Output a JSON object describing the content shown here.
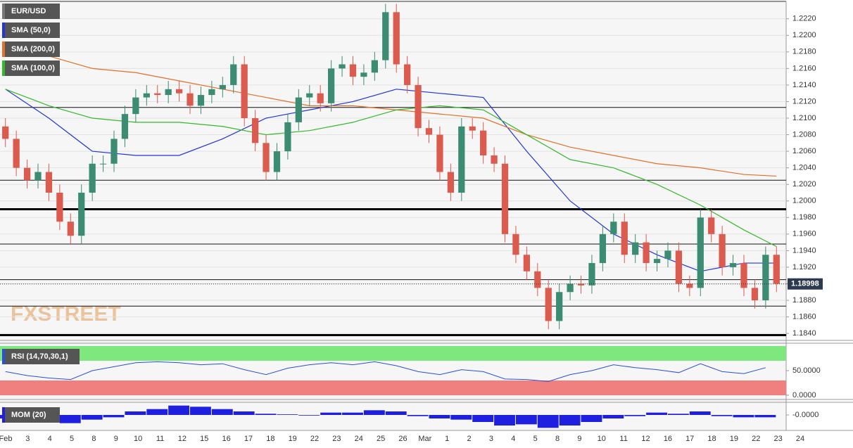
{
  "chart_data": [
    {
      "type": "candlestick",
      "symbol_label": "EUR/USD",
      "watermark": "FXSTREET",
      "open": [
        1.209,
        1.2075,
        1.204,
        1.2025,
        1.2035,
        1.201,
        1.1975,
        1.1958,
        1.201,
        1.2045,
        1.2045,
        1.2075,
        1.2105,
        1.2125,
        1.213,
        1.2128,
        1.2135,
        1.213,
        1.2115,
        1.2128,
        1.2135,
        1.214,
        1.2165,
        1.21,
        1.207,
        1.2035,
        1.206,
        1.2095,
        1.2125,
        1.213,
        1.2118,
        1.216,
        1.2165,
        1.215,
        1.2155,
        1.217,
        1.2228,
        1.2165,
        1.214,
        1.2088,
        1.208,
        1.2035,
        1.201,
        1.209,
        1.2085,
        1.2055,
        1.2045,
        1.196,
        1.1935,
        1.1915,
        1.1895,
        1.1855,
        1.189,
        1.19,
        1.1898,
        1.1925,
        1.196,
        1.1975,
        1.1935,
        1.195,
        1.1925,
        1.193,
        1.194,
        1.19,
        1.1895,
        1.198,
        1.196,
        1.192,
        1.1925,
        1.1895,
        1.188,
        1.1935
      ],
      "high": [
        1.21,
        1.2085,
        1.205,
        1.2045,
        1.2045,
        1.202,
        1.1985,
        1.202,
        1.2055,
        1.2055,
        1.2085,
        1.2115,
        1.2135,
        1.214,
        1.214,
        1.2145,
        1.2145,
        1.214,
        1.2138,
        1.2145,
        1.215,
        1.2175,
        1.2175,
        1.211,
        1.208,
        1.207,
        1.2105,
        1.2135,
        1.214,
        1.214,
        1.217,
        1.2175,
        1.2175,
        1.2165,
        1.218,
        1.2238,
        1.2238,
        1.2175,
        1.215,
        1.2098,
        1.209,
        1.2045,
        1.21,
        1.21,
        1.2095,
        1.2065,
        1.2055,
        1.197,
        1.1945,
        1.1925,
        1.1905,
        1.19,
        1.191,
        1.191,
        1.1935,
        1.197,
        1.1985,
        1.1985,
        1.196,
        1.196,
        1.194,
        1.195,
        1.195,
        1.191,
        1.199,
        1.199,
        1.197,
        1.1935,
        1.1935,
        1.1905,
        1.1945,
        1.1945
      ],
      "low": [
        1.2065,
        1.203,
        1.2015,
        1.2015,
        1.2,
        1.1965,
        1.1948,
        1.1948,
        1.2,
        1.2035,
        1.2035,
        1.2065,
        1.2095,
        1.2115,
        1.2118,
        1.2118,
        1.212,
        1.2105,
        1.2105,
        1.2118,
        1.2125,
        1.213,
        1.209,
        1.206,
        1.2025,
        1.2025,
        1.205,
        1.2085,
        1.2115,
        1.2108,
        1.2108,
        1.215,
        1.214,
        1.214,
        1.2145,
        1.216,
        1.2155,
        1.213,
        1.2078,
        1.207,
        1.2025,
        1.2,
        1.2,
        1.2075,
        1.2045,
        1.2035,
        1.195,
        1.1925,
        1.1905,
        1.1885,
        1.1845,
        1.1845,
        1.188,
        1.1888,
        1.1888,
        1.1915,
        1.195,
        1.1925,
        1.1925,
        1.1915,
        1.1915,
        1.192,
        1.189,
        1.1885,
        1.1885,
        1.195,
        1.191,
        1.191,
        1.1885,
        1.187,
        1.187,
        1.189
      ],
      "close": [
        1.2075,
        1.204,
        1.2025,
        1.2035,
        1.201,
        1.1975,
        1.1958,
        1.201,
        1.2045,
        1.2045,
        1.2075,
        1.2105,
        1.2125,
        1.213,
        1.2128,
        1.2135,
        1.213,
        1.2115,
        1.2128,
        1.2135,
        1.214,
        1.2165,
        1.21,
        1.207,
        1.2035,
        1.206,
        1.2095,
        1.2125,
        1.213,
        1.2118,
        1.216,
        1.2165,
        1.215,
        1.2155,
        1.217,
        1.2228,
        1.2165,
        1.214,
        1.2088,
        1.208,
        1.2035,
        1.201,
        1.209,
        1.2085,
        1.2055,
        1.2045,
        1.196,
        1.1935,
        1.1915,
        1.1895,
        1.1855,
        1.189,
        1.19,
        1.1898,
        1.1925,
        1.196,
        1.1975,
        1.1935,
        1.195,
        1.1925,
        1.193,
        1.194,
        1.19,
        1.1895,
        1.198,
        1.196,
        1.192,
        1.1925,
        1.1895,
        1.188,
        1.1935,
        1.19
      ],
      "up_color": "#3b8c72",
      "down_color": "#db5b4f",
      "ylim": [
        1.1835,
        1.2241
      ],
      "yticks": [
        {
          "value": 1.184,
          "label": "1.1840"
        },
        {
          "value": 1.186,
          "label": "1.1860"
        },
        {
          "value": 1.188,
          "label": "1.1880"
        },
        {
          "value": 1.19,
          "label": "1.1900"
        },
        {
          "value": 1.192,
          "label": "1.1920"
        },
        {
          "value": 1.194,
          "label": "1.1940"
        },
        {
          "value": 1.196,
          "label": "1.1960"
        },
        {
          "value": 1.198,
          "label": "1.1980"
        },
        {
          "value": 1.2,
          "label": "1.2000"
        },
        {
          "value": 1.202,
          "label": "1.2020"
        },
        {
          "value": 1.204,
          "label": "1.2040"
        },
        {
          "value": 1.206,
          "label": "1.2060"
        },
        {
          "value": 1.208,
          "label": "1.2080"
        },
        {
          "value": 1.21,
          "label": "1.2100"
        },
        {
          "value": 1.212,
          "label": "1.2120"
        },
        {
          "value": 1.214,
          "label": "1.2140"
        },
        {
          "value": 1.216,
          "label": "1.2160"
        },
        {
          "value": 1.218,
          "label": "1.2180"
        },
        {
          "value": 1.22,
          "label": "1.2200"
        },
        {
          "value": 1.222,
          "label": "1.2220"
        }
      ],
      "grid": true,
      "levels": [
        1.2113,
        1.2025,
        1.1948,
        1.1905,
        1.1873
      ],
      "bold_levels": [
        1.199,
        1.1838
      ],
      "last_price": 1.18998,
      "date_labels": [
        "Feb",
        "3",
        "4",
        "5",
        "8",
        "9",
        "10",
        "11",
        "12",
        "15",
        "16",
        "17",
        "18",
        "19",
        "22",
        "23",
        "24",
        "25",
        "26",
        "Mar",
        "1",
        "2",
        "3",
        "4",
        "5",
        "8",
        "9",
        "10",
        "11",
        "12",
        "16",
        "17",
        "18",
        "19",
        "22",
        "23",
        "24"
      ],
      "series": [
        {
          "name": "SMA (50,0)",
          "color": "#2236d6",
          "x": [
            0,
            4,
            8,
            12,
            16,
            20,
            24,
            28,
            32,
            36,
            40,
            44,
            48,
            52,
            56,
            60,
            64,
            68,
            71
          ],
          "values": [
            1.2135,
            1.21,
            1.206,
            1.2055,
            1.2055,
            1.2075,
            1.21,
            1.211,
            1.212,
            1.2135,
            1.213,
            1.2125,
            1.206,
            1.2,
            1.196,
            1.1935,
            1.1915,
            1.1925,
            1.1925
          ]
        },
        {
          "name": "SMA (200,0)",
          "color": "#e0702a",
          "x": [
            4,
            8,
            12,
            16,
            20,
            24,
            28,
            32,
            36,
            40,
            44,
            48,
            52,
            56,
            60,
            64,
            68,
            71
          ],
          "values": [
            1.2175,
            1.216,
            1.2155,
            1.2145,
            1.2135,
            1.2125,
            1.2115,
            1.2115,
            1.211,
            1.2105,
            1.21,
            1.208,
            1.2065,
            1.2055,
            1.2045,
            1.204,
            1.2032,
            1.203
          ]
        },
        {
          "name": "SMA (100,0)",
          "color": "#35b82a",
          "x": [
            0,
            4,
            8,
            12,
            16,
            20,
            24,
            28,
            32,
            36,
            40,
            44,
            48,
            52,
            56,
            60,
            64,
            68,
            71
          ],
          "values": [
            1.2135,
            1.2115,
            1.21,
            1.2095,
            1.2095,
            1.209,
            1.208,
            1.2085,
            1.2095,
            1.211,
            1.2115,
            1.211,
            1.208,
            1.205,
            1.204,
            1.202,
            1.1995,
            1.1965,
            1.1945
          ]
        }
      ]
    },
    {
      "type": "line",
      "name": "RSI (14,70,30,1)",
      "color": "#2b4fd8",
      "x": [
        0,
        2,
        4,
        6,
        8,
        10,
        12,
        14,
        16,
        18,
        20,
        22,
        24,
        26,
        28,
        30,
        32,
        34,
        36,
        38,
        40,
        42,
        44,
        46,
        48,
        50,
        52,
        54,
        56,
        58,
        60,
        62,
        64,
        66,
        68,
        70
      ],
      "values": [
        48,
        40,
        35,
        32,
        50,
        58,
        66,
        68,
        66,
        62,
        64,
        52,
        42,
        55,
        62,
        66,
        62,
        68,
        60,
        48,
        42,
        52,
        48,
        33,
        32,
        28,
        42,
        50,
        62,
        56,
        52,
        46,
        64,
        48,
        44,
        56
      ],
      "ylim": [
        0,
        100
      ],
      "yticks": [
        {
          "value": 50,
          "label": "50.0000"
        },
        {
          "value": 0,
          "label": "0.0000"
        }
      ],
      "upper_band": [
        70,
        100
      ],
      "upper_color": "#7ee87e",
      "lower_band": [
        0,
        30
      ],
      "lower_color": "#f08080"
    },
    {
      "type": "bar",
      "name": "MOM (20)",
      "color": "#1f1fe0",
      "x": [
        0,
        2,
        4,
        6,
        8,
        10,
        12,
        14,
        16,
        18,
        20,
        22,
        24,
        26,
        28,
        30,
        32,
        34,
        36,
        38,
        40,
        42,
        44,
        46,
        48,
        50,
        52,
        54,
        56,
        58,
        60,
        62,
        64,
        66,
        68,
        70
      ],
      "values": [
        -0.003,
        -0.004,
        -0.006,
        -0.007,
        -0.004,
        -0.002,
        0.003,
        0.005,
        0.008,
        0.007,
        0.005,
        0.003,
        0.001,
        0.0005,
        -0.0005,
        0.002,
        0.002,
        0.004,
        0.003,
        -0.001,
        -0.003,
        -0.004,
        -0.006,
        -0.009,
        -0.008,
        -0.011,
        -0.009,
        -0.006,
        -0.003,
        -0.001,
        0.002,
        0.001,
        0.003,
        -0.001,
        -0.002,
        -0.002
      ],
      "ylim": [
        -0.012,
        0.009
      ],
      "yticks": [
        {
          "value": 0,
          "label": "-0.0000"
        }
      ]
    }
  ]
}
